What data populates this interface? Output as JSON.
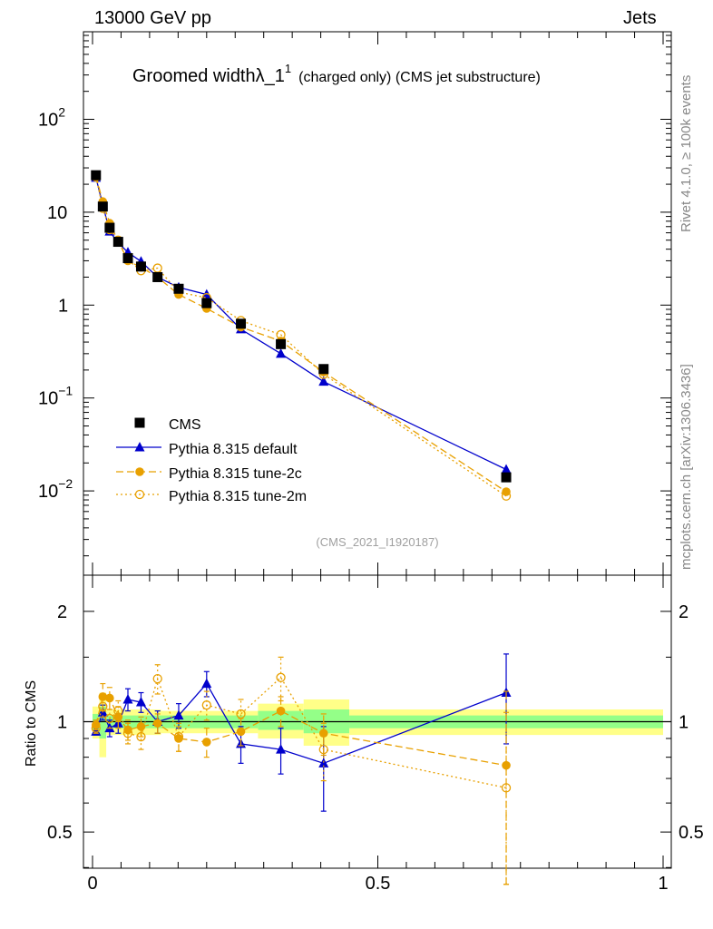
{
  "header": {
    "energy": "13000 GeV pp",
    "category": "Jets"
  },
  "side_text": {
    "rivet": "Rivet 4.1.0, ≥ 100k events",
    "url": "mcplots.cern.ch [arXiv:1306.3436]"
  },
  "chart_data": {
    "type": "line",
    "title_main": "Groomed widthλ_1",
    "title_sup": "1",
    "title_sub": "(charged only) (CMS jet substructure)",
    "analysis_id": "(CMS_2021_I1920187)",
    "xlim": [
      0,
      1
    ],
    "ylim_main_log": [
      0.001,
      1000
    ],
    "ylim_ratio": [
      0.35,
      2.35
    ],
    "xticks": [
      0,
      0.5,
      1
    ],
    "xtick_labels": [
      "0",
      "0.5",
      "1"
    ],
    "ratio_ylabel": "Ratio to CMS",
    "ratio_ticks": [
      "0.5",
      "1",
      "2"
    ],
    "main_ytick_labels": {
      "d2": "10",
      "d2e": "−2",
      "d1": "10",
      "d1e": "−1",
      "one": "1",
      "ten": "10",
      "p2": "10",
      "p2e": "2"
    },
    "x": [
      0.006,
      0.018,
      0.03,
      0.045,
      0.062,
      0.085,
      0.114,
      0.151,
      0.2,
      0.26,
      0.33,
      0.405,
      0.725
    ],
    "data": {
      "name": "CMS",
      "values": [
        25,
        11.5,
        6.8,
        4.8,
        3.2,
        2.6,
        2.0,
        1.5,
        1.05,
        0.63,
        0.38,
        0.205,
        0.014
      ]
    },
    "ratio_bands": [
      {
        "x0": 0.0,
        "x1": 0.012,
        "stat": [
          0.95,
          1.05
        ],
        "tot": [
          0.9,
          1.1
        ]
      },
      {
        "x0": 0.012,
        "x1": 0.024,
        "stat": [
          0.9,
          1.1
        ],
        "tot": [
          0.8,
          1.2
        ]
      },
      {
        "x0": 0.024,
        "x1": 0.12,
        "stat": [
          0.96,
          1.04
        ],
        "tot": [
          0.92,
          1.08
        ]
      },
      {
        "x0": 0.12,
        "x1": 0.29,
        "stat": [
          0.96,
          1.04
        ],
        "tot": [
          0.93,
          1.07
        ]
      },
      {
        "x0": 0.29,
        "x1": 0.37,
        "stat": [
          0.95,
          1.07
        ],
        "tot": [
          0.9,
          1.12
        ]
      },
      {
        "x0": 0.37,
        "x1": 0.45,
        "stat": [
          0.93,
          1.08
        ],
        "tot": [
          0.86,
          1.15
        ]
      },
      {
        "x0": 0.45,
        "x1": 1.0,
        "stat": [
          0.96,
          1.04
        ],
        "tot": [
          0.92,
          1.08
        ]
      }
    ],
    "series": [
      {
        "name": "Pythia 8.315 default",
        "color": "#0000cc",
        "marker": "triangle",
        "dash": "",
        "values": [
          23.5,
          12.0,
          6.2,
          4.7,
          3.7,
          2.95,
          2.0,
          1.55,
          1.3,
          0.55,
          0.3,
          0.15,
          0.017
        ],
        "ratio": [
          0.94,
          1.06,
          0.96,
          0.99,
          1.15,
          1.13,
          1.0,
          1.04,
          1.27,
          0.87,
          0.84,
          0.77,
          1.2
        ],
        "ratio_err": [
          0.02,
          0.05,
          0.05,
          0.06,
          0.08,
          0.07,
          0.07,
          0.08,
          0.1,
          0.1,
          0.12,
          0.2,
          0.33
        ]
      },
      {
        "name": "Pythia 8.315 tune-2c",
        "color": "#e8a000",
        "marker": "circle",
        "dash": "8,4",
        "values": [
          24.5,
          13.0,
          7.6,
          4.9,
          3.0,
          2.55,
          2.0,
          1.3,
          0.92,
          0.58,
          0.41,
          0.19,
          0.0098
        ],
        "ratio": [
          0.98,
          1.17,
          1.16,
          1.03,
          0.95,
          0.97,
          0.99,
          0.9,
          0.88,
          0.94,
          1.07,
          0.93,
          0.76
        ],
        "ratio_err": [
          0.03,
          0.1,
          0.08,
          0.07,
          0.06,
          0.06,
          0.06,
          0.07,
          0.08,
          0.08,
          0.1,
          0.12,
          0.45
        ]
      },
      {
        "name": "Pythia 8.315 tune-2m",
        "color": "#e8a000",
        "marker": "open-circle",
        "dash": "2,3",
        "values": [
          24.0,
          11.0,
          6.5,
          5.0,
          3.05,
          2.35,
          2.5,
          1.38,
          1.2,
          0.68,
          0.48,
          0.18,
          0.0088
        ],
        "ratio": [
          0.96,
          1.1,
          1.02,
          1.07,
          0.93,
          0.91,
          1.31,
          0.91,
          1.11,
          1.05,
          1.32,
          0.84,
          0.66
        ],
        "ratio_err": [
          0.03,
          0.07,
          0.06,
          0.07,
          0.06,
          0.07,
          0.12,
          0.08,
          0.1,
          0.1,
          0.18,
          0.15,
          0.4
        ]
      }
    ]
  }
}
